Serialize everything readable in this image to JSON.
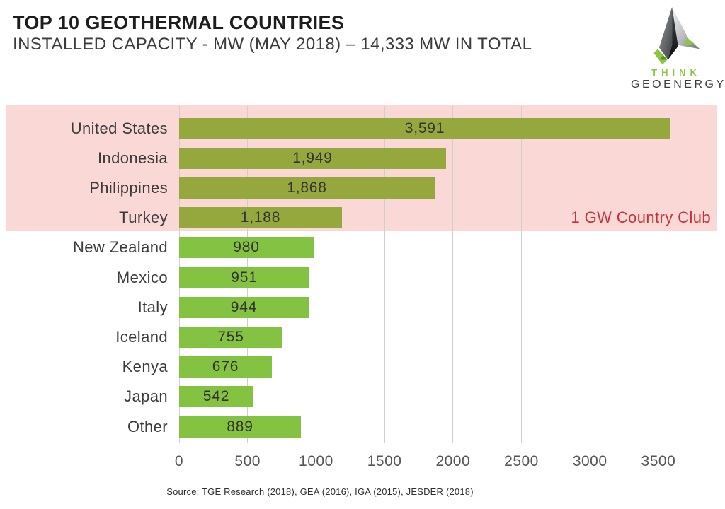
{
  "header": {
    "title": "TOP 10 GEOTHERMAL COUNTRIES",
    "subtitle": "INSTALLED CAPACITY - MW (MAY 2018) – 14,333 MW IN TOTAL"
  },
  "logo": {
    "line1": "THINK",
    "line2": "GEOENERGY"
  },
  "chart_data": {
    "type": "bar",
    "orientation": "horizontal",
    "categories": [
      "United States",
      "Indonesia",
      "Philippines",
      "Turkey",
      "New Zealand",
      "Mexico",
      "Italy",
      "Iceland",
      "Kenya",
      "Japan",
      "Other"
    ],
    "values": [
      3591,
      1949,
      1868,
      1188,
      980,
      951,
      944,
      755,
      676,
      542,
      889
    ],
    "value_labels": [
      "3,591",
      "1,949",
      "1,868",
      "1,188",
      "980",
      "951",
      "944",
      "755",
      "676",
      "542",
      "889"
    ],
    "x_ticks": [
      {
        "value": 0,
        "label": "0"
      },
      {
        "value": 500,
        "label": "500"
      },
      {
        "value": 1000,
        "label": "1000"
      },
      {
        "value": 1500,
        "label": "1500"
      },
      {
        "value": 2000,
        "label": "2000"
      },
      {
        "value": 2500,
        "label": "2500"
      },
      {
        "value": 3000,
        "label": "3000"
      },
      {
        "value": 3500,
        "label": "3500"
      }
    ],
    "xlim": [
      0,
      3650
    ],
    "grid": true,
    "annotation": "1 GW Country Club",
    "highlight_group_size": 4,
    "total_mw": "14,333",
    "colors": {
      "bar_highlight": "#94a83d",
      "bar_normal": "#84c341",
      "band": "#f9d8d6",
      "annotation_text": "#c6323b",
      "gridline": "#cfcfcf",
      "logo_green": "#8dc63f",
      "logo_dark": "#3a3f44"
    },
    "source": "Source: TGE Research (2018), GEA (2016), IGA (2015), JESDER (2018)"
  }
}
